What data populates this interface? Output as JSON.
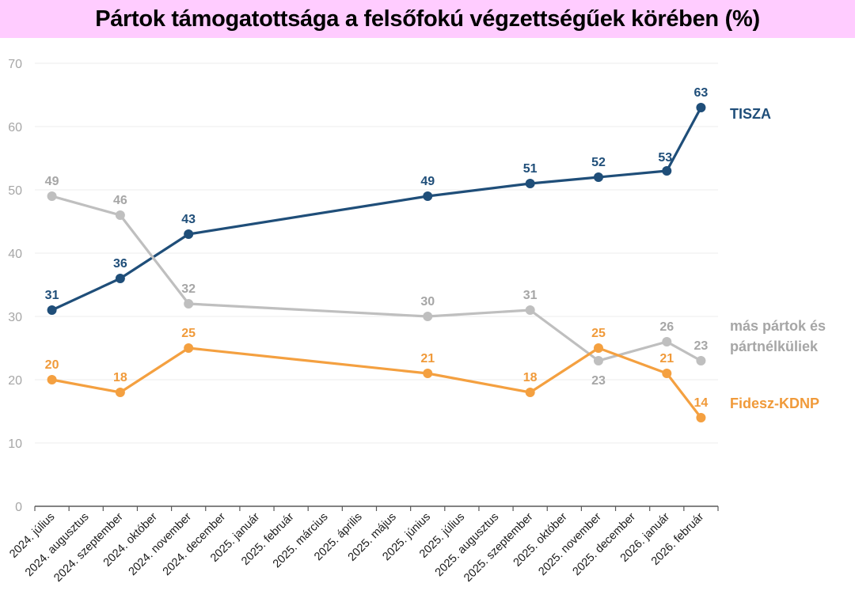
{
  "chart_data": {
    "type": "line",
    "title": "Pártok támogatottsága a felsőfokú végzettségűek körében (%)",
    "xlabel": "",
    "ylabel": "",
    "ylim": [
      0,
      70
    ],
    "yticks": [
      0,
      10,
      20,
      30,
      40,
      50,
      60,
      70
    ],
    "grid": true,
    "legend": "right, labels at line ends",
    "categories": [
      "2024. július",
      "2024. augusztus",
      "2024. szeptember",
      "2024. október",
      "2024. november",
      "2024. december",
      "2025. január",
      "2025. február",
      "2025. március",
      "2025. április",
      "2025. május",
      "2025. június",
      "2025. július",
      "2025. augusztus",
      "2025. szeptember",
      "2025. október",
      "2025. november",
      "2025. december",
      "2026. január",
      "2026. február"
    ],
    "series": [
      {
        "name": "TISZA",
        "color": "#1f4e79",
        "values": [
          31,
          null,
          36,
          null,
          43,
          null,
          null,
          null,
          null,
          null,
          null,
          49,
          null,
          null,
          51,
          null,
          52,
          null,
          53,
          63
        ],
        "label_offsets": [
          "above",
          "",
          "above",
          "",
          "above",
          "",
          "",
          "",
          "",
          "",
          "",
          "above",
          "",
          "",
          "above",
          "",
          "above",
          "",
          "above-left",
          "above"
        ]
      },
      {
        "name": "más pártok és pártnélküliek",
        "name_lines": [
          "más pártok és",
          "pártnélküliek"
        ],
        "color": "#bfbfbf",
        "label_color": "#a6a6a6",
        "values": [
          49,
          null,
          46,
          null,
          32,
          null,
          null,
          null,
          null,
          null,
          null,
          30,
          null,
          null,
          31,
          null,
          23,
          null,
          26,
          23
        ],
        "label_offsets": [
          "above",
          "",
          "above",
          "",
          "above",
          "",
          "",
          "",
          "",
          "",
          "",
          "above",
          "",
          "",
          "above",
          "",
          "below",
          "",
          "above",
          "above"
        ]
      },
      {
        "name": "Fidesz-KDNP",
        "color": "#f4a040",
        "label_color": "#f09a3a",
        "values": [
          20,
          null,
          18,
          null,
          25,
          null,
          null,
          null,
          null,
          null,
          null,
          21,
          null,
          null,
          18,
          null,
          25,
          null,
          21,
          14
        ],
        "label_offsets": [
          "above",
          "",
          "above",
          "",
          "above",
          "",
          "",
          "",
          "",
          "",
          "",
          "above",
          "",
          "",
          "above",
          "",
          "above",
          "",
          "above",
          "above"
        ]
      }
    ]
  }
}
